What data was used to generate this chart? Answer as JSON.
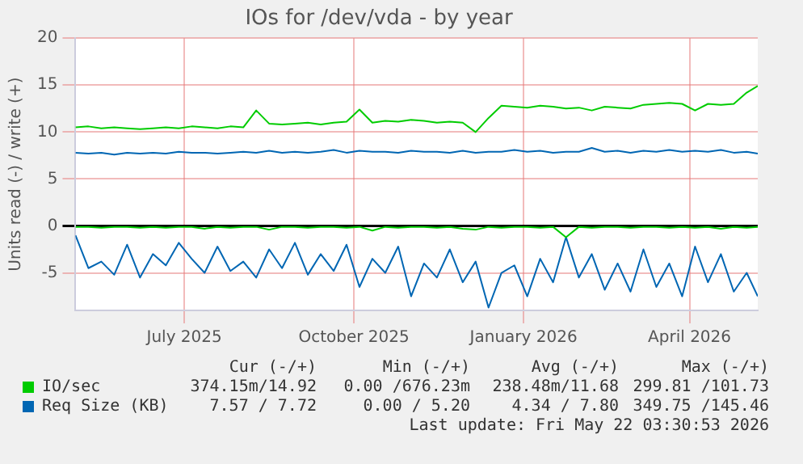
{
  "chart_data": {
    "type": "line",
    "title": "IOs for /dev/vda - by year",
    "ylabel": "Units read (-) / write (+)",
    "x": [
      "2025-05-17",
      "2025-05-24",
      "2025-05-31",
      "2025-06-07",
      "2025-06-14",
      "2025-06-21",
      "2025-06-28",
      "2025-07-05",
      "2025-07-12",
      "2025-07-19",
      "2025-07-26",
      "2025-08-02",
      "2025-08-09",
      "2025-08-16",
      "2025-08-23",
      "2025-08-30",
      "2025-09-06",
      "2025-09-13",
      "2025-09-20",
      "2025-09-27",
      "2025-10-04",
      "2025-10-11",
      "2025-10-18",
      "2025-10-25",
      "2025-11-01",
      "2025-11-08",
      "2025-11-15",
      "2025-11-22",
      "2025-11-29",
      "2025-12-06",
      "2025-12-13",
      "2025-12-20",
      "2025-12-27",
      "2026-01-03",
      "2026-01-10",
      "2026-01-17",
      "2026-01-24",
      "2026-01-31",
      "2026-02-07",
      "2026-02-14",
      "2026-02-21",
      "2026-02-28",
      "2026-03-07",
      "2026-03-14",
      "2026-03-21",
      "2026-03-28",
      "2026-04-04",
      "2026-04-11",
      "2026-04-18",
      "2026-04-25",
      "2026-05-02",
      "2026-05-09",
      "2026-05-16",
      "2026-05-22"
    ],
    "series": [
      {
        "name": "IO/sec",
        "color": "#00cc00",
        "values": [
          10.5,
          10.6,
          10.4,
          10.5,
          10.4,
          10.3,
          10.4,
          10.5,
          10.4,
          10.6,
          10.5,
          10.4,
          10.6,
          10.5,
          12.3,
          10.9,
          10.8,
          10.9,
          11.0,
          10.8,
          11.0,
          11.1,
          12.4,
          11.0,
          11.2,
          11.1,
          11.3,
          11.2,
          11.0,
          11.1,
          11.0,
          10.0,
          11.5,
          12.8,
          12.7,
          12.6,
          12.8,
          12.7,
          12.5,
          12.6,
          12.3,
          12.7,
          12.6,
          12.5,
          12.9,
          13.0,
          13.1,
          13.0,
          12.3,
          13.0,
          12.9,
          13.0,
          14.2,
          14.9
        ]
      },
      {
        "name": "Req Size (KB)",
        "color": "#0066b3",
        "values": [
          7.8,
          7.7,
          7.8,
          7.6,
          7.8,
          7.7,
          7.8,
          7.7,
          7.9,
          7.8,
          7.8,
          7.7,
          7.8,
          7.9,
          7.8,
          8.0,
          7.8,
          7.9,
          7.8,
          7.9,
          8.1,
          7.8,
          8.0,
          7.9,
          7.9,
          7.8,
          8.0,
          7.9,
          7.9,
          7.8,
          8.0,
          7.8,
          7.9,
          7.9,
          8.1,
          7.9,
          8.0,
          7.8,
          7.9,
          7.9,
          8.3,
          7.9,
          8.0,
          7.8,
          8.0,
          7.9,
          8.1,
          7.9,
          8.0,
          7.9,
          8.1,
          7.8,
          7.9,
          7.7
        ]
      },
      {
        "color": "#00cc00",
        "values": [
          -0.1,
          -0.1,
          -0.2,
          -0.1,
          -0.1,
          -0.2,
          -0.1,
          -0.2,
          -0.1,
          -0.1,
          -0.3,
          -0.1,
          -0.2,
          -0.1,
          -0.1,
          -0.4,
          -0.1,
          -0.1,
          -0.2,
          -0.1,
          -0.1,
          -0.2,
          -0.1,
          -0.5,
          -0.1,
          -0.2,
          -0.1,
          -0.1,
          -0.2,
          -0.1,
          -0.3,
          -0.4,
          -0.1,
          -0.2,
          -0.1,
          -0.1,
          -0.2,
          -0.1,
          -1.2,
          -0.1,
          -0.2,
          -0.1,
          -0.1,
          -0.2,
          -0.1,
          -0.1,
          -0.2,
          -0.1,
          -0.2,
          -0.1,
          -0.3,
          -0.1,
          -0.2,
          -0.1
        ]
      },
      {
        "color": "#0066b3",
        "values": [
          -1.0,
          -4.5,
          -3.8,
          -5.2,
          -2.0,
          -5.5,
          -3.0,
          -4.2,
          -1.8,
          -3.5,
          -5.0,
          -2.2,
          -4.8,
          -3.8,
          -5.5,
          -2.5,
          -4.5,
          -1.8,
          -5.2,
          -3.0,
          -4.8,
          -2.0,
          -6.5,
          -3.5,
          -5.0,
          -2.2,
          -7.5,
          -4.0,
          -5.5,
          -2.5,
          -6.0,
          -3.8,
          -8.7,
          -5.0,
          -4.2,
          -7.5,
          -3.5,
          -6.0,
          -1.2,
          -5.5,
          -3.0,
          -6.8,
          -4.0,
          -7.0,
          -2.5,
          -6.5,
          -4.0,
          -7.5,
          -2.2,
          -6.0,
          -3.0,
          -7.0,
          -5.0,
          -7.5
        ]
      }
    ],
    "xlim": [
      "2025-05-17",
      "2026-05-22"
    ],
    "xticks": [
      {
        "value": "2025-07-15",
        "label": "July 2025"
      },
      {
        "value": "2025-10-15",
        "label": "October 2025"
      },
      {
        "value": "2026-01-15",
        "label": "January 2026"
      },
      {
        "value": "2026-04-15",
        "label": "April 2026"
      }
    ],
    "ylim": [
      -9,
      20
    ],
    "yticks": [
      -5,
      0,
      5,
      10,
      15,
      20
    ],
    "grid": true,
    "legend": "bottom",
    "annotations": [
      "Cur (-/+)",
      "Min (-/+)",
      "Avg (-/+)",
      "Max (-/+)",
      "374.15m/14.92",
      "0.00 /676.23m",
      "238.48m/11.68",
      "299.81 /101.73",
      "7.57 / 7.72",
      "0.00 / 5.20",
      "4.34 / 7.80",
      "349.75 /145.46",
      "Last update: Fri May 22 03:30:53 2026"
    ]
  }
}
